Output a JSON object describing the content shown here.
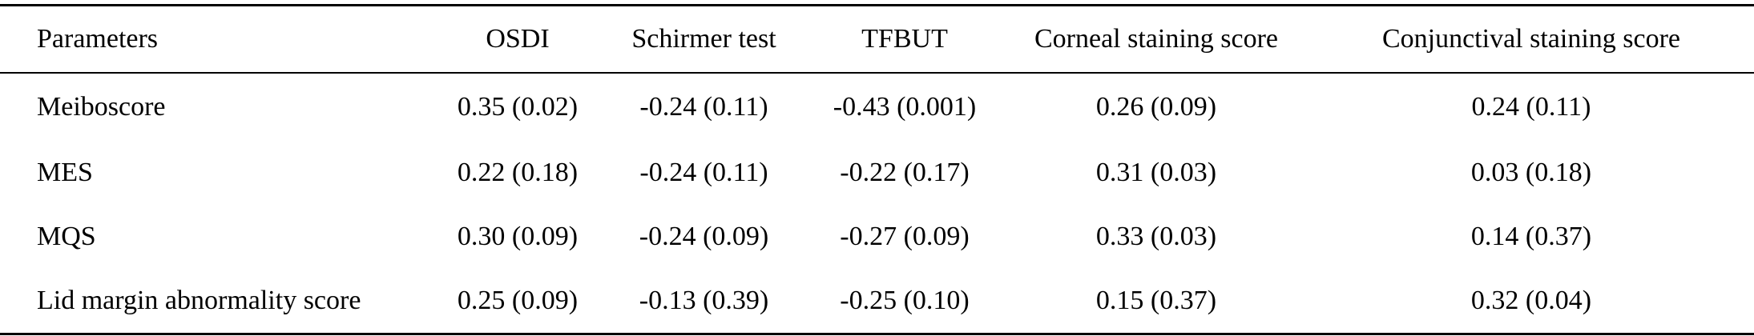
{
  "table": {
    "headers": [
      "Parameters",
      "OSDI",
      "Schirmer test",
      "TFBUT",
      "Corneal staining score",
      "Conjunctival staining score"
    ],
    "rows": [
      [
        "Meiboscore",
        "0.35 (0.02)",
        "-0.24 (0.11)",
        "-0.43 (0.001)",
        "0.26 (0.09)",
        "0.24 (0.11)"
      ],
      [
        "MES",
        "0.22 (0.18)",
        "-0.24 (0.11)",
        "-0.22 (0.17)",
        "0.31 (0.03)",
        "0.03 (0.18)"
      ],
      [
        "MQS",
        "0.30 (0.09)",
        "-0.24 (0.09)",
        "-0.27 (0.09)",
        "0.33 (0.03)",
        "0.14 (0.37)"
      ],
      [
        "Lid margin abnormality score",
        "0.25 (0.09)",
        "-0.13 (0.39)",
        "-0.25 (0.10)",
        "0.15 (0.37)",
        "0.32 (0.04)"
      ]
    ]
  }
}
